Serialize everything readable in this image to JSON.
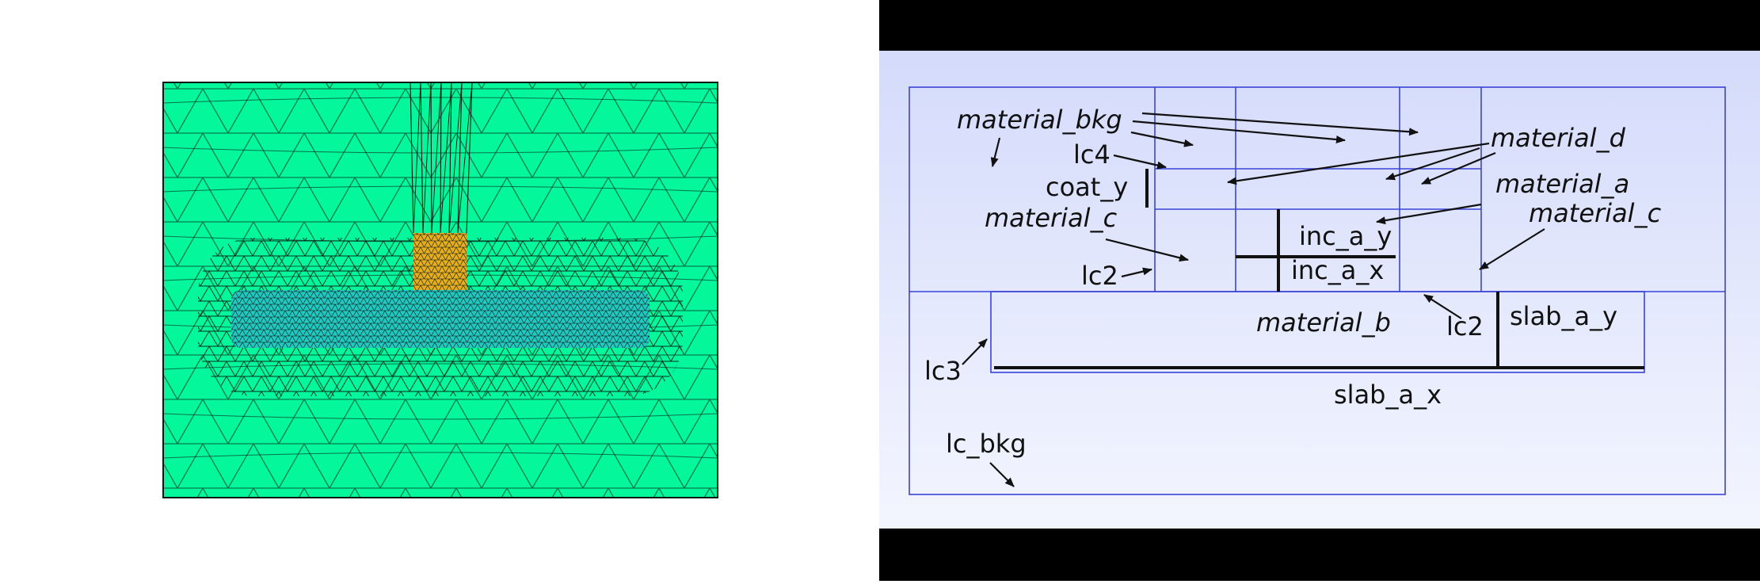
{
  "mesh": {
    "colors": {
      "background_material": "#04f79a",
      "slab_material": "#22c9c0",
      "inclusion_material": "#e6ae1e",
      "edge": "#0a1a14"
    }
  },
  "schematic": {
    "colors": {
      "frame": "#3a44d8",
      "fill_top": "#d4dbfb",
      "fill_bottom": "#f3f5fe",
      "band": "#000000",
      "arrow": "#111111"
    },
    "labels": {
      "material_bkg": "material_bkg",
      "material_d": "material_d",
      "lc4": "lc4",
      "coat_y": "coat_y",
      "material_a": "material_a",
      "material_c_left": "material_c",
      "material_c_right": "material_c",
      "inc_a_y": "inc_a_y",
      "inc_a_x": "inc_a_x",
      "lc2_left": "lc2",
      "material_b": "material_b",
      "lc2_right": "lc2",
      "slab_a_y": "slab_a_y",
      "lc3": "lc3",
      "slab_a_x": "slab_a_x",
      "lc_bkg": "lc_bkg"
    }
  }
}
